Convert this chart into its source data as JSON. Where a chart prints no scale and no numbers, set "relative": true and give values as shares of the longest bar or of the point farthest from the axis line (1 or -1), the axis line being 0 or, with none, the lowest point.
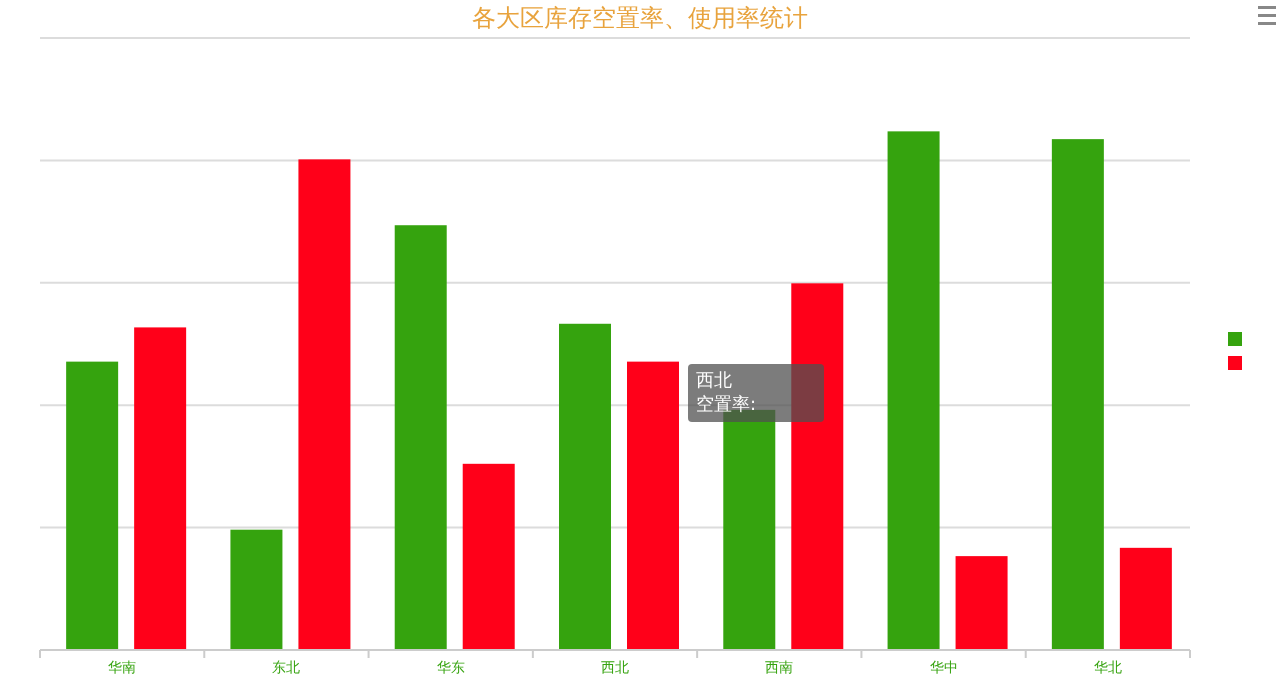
{
  "chart_data": {
    "type": "bar",
    "title": "各大区库存空置率、使用率统计",
    "relative": true,
    "grid": true,
    "categories": [
      "华南",
      "东北",
      "华东",
      "西北",
      "西南",
      "华中",
      "华北"
    ],
    "series": [
      {
        "color": "#35a30e",
        "values": [
          0.556,
          0.232,
          0.819,
          0.629,
          0.463,
          1,
          0.985
        ]
      },
      {
        "color": "#ff0019",
        "values": [
          0.622,
          0.946,
          0.359,
          0.556,
          0.707,
          0.181,
          0.197
        ]
      }
    ],
    "annotations": [
      "西北",
      "空置率:"
    ]
  }
}
